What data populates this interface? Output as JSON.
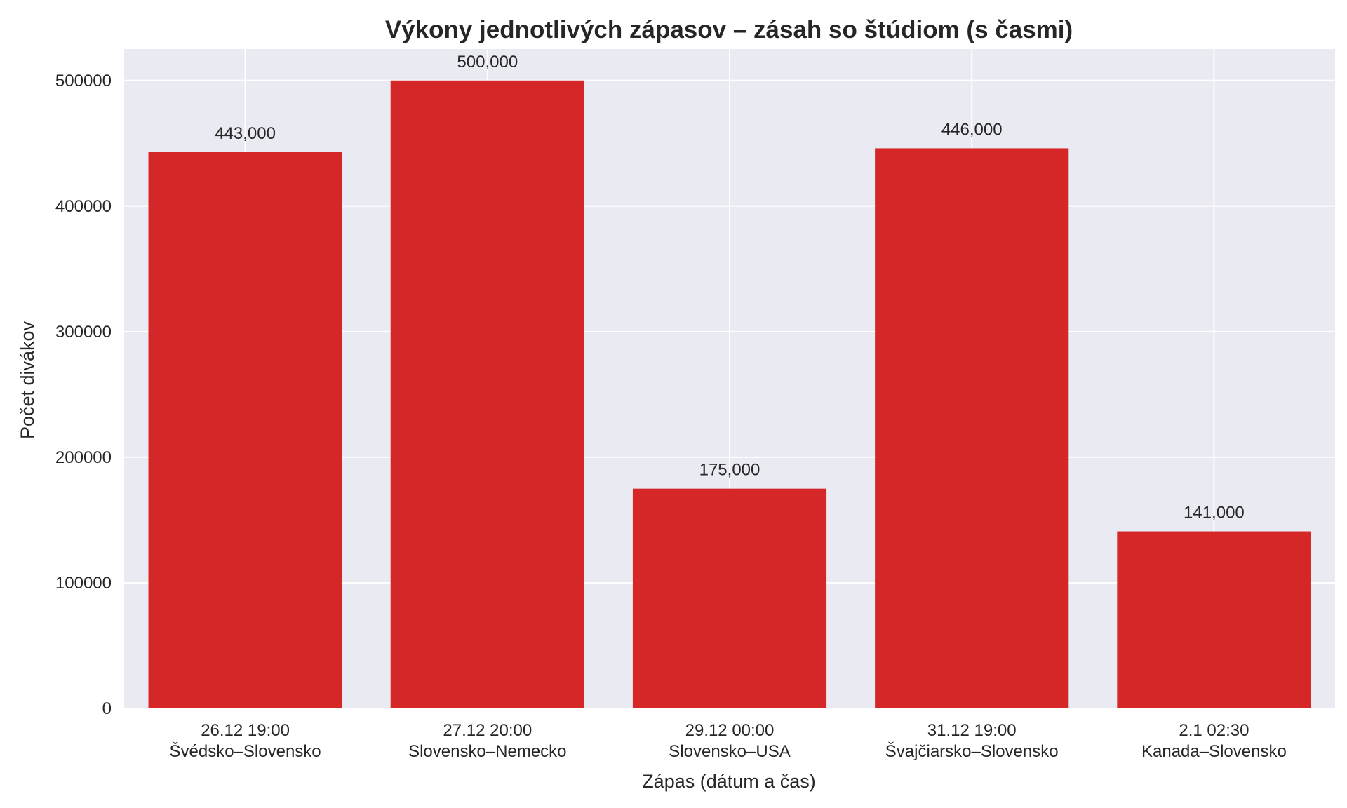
{
  "chart_data": {
    "type": "bar",
    "title": "Výkony jednotlivých zápasov – zásah so štúdiom (s časmi)",
    "xlabel": "Zápas (dátum a čas)",
    "ylabel": "Počet divákov",
    "categories": [
      {
        "line1": "26.12 19:00",
        "line2": "Švédsko–Slovensko"
      },
      {
        "line1": "27.12 20:00",
        "line2": "Slovensko–Nemecko"
      },
      {
        "line1": "29.12 00:00",
        "line2": "Slovensko–USA"
      },
      {
        "line1": "31.12 19:00",
        "line2": "Švajčiarsko–Slovensko"
      },
      {
        "line1": "2.1 02:30",
        "line2": "Kanada–Slovensko"
      }
    ],
    "values": [
      443000,
      500000,
      175000,
      446000,
      141000
    ],
    "data_labels": [
      "443,000",
      "500,000",
      "175,000",
      "446,000",
      "141,000"
    ],
    "yticks": [
      0,
      100000,
      200000,
      300000,
      400000,
      500000
    ],
    "ytick_labels": [
      "0",
      "100000",
      "200000",
      "300000",
      "400000",
      "500000"
    ],
    "ylim": [
      0,
      525000
    ],
    "grid": true,
    "legend": "none",
    "colors": {
      "bar": "#d62728",
      "plot_background": "#eaeaf2",
      "grid": "#ffffff",
      "text": "#262626"
    }
  }
}
